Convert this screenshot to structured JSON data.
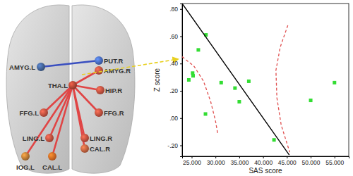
{
  "chart_data": {
    "type": "scatter",
    "x_label": "SAS score",
    "y_label": "Z score",
    "xlim": [
      23,
      58
    ],
    "ylim": [
      -0.28,
      0.84
    ],
    "xticks": [
      {
        "value": 25,
        "label": "25.000"
      },
      {
        "value": 30,
        "label": "30.000"
      },
      {
        "value": 35,
        "label": "35.000"
      },
      {
        "value": 40,
        "label": "40.000"
      },
      {
        "value": 45,
        "label": "45.000"
      },
      {
        "value": 50,
        "label": "50.000"
      },
      {
        "value": 55,
        "label": "55.000"
      }
    ],
    "yticks": [
      {
        "value": -0.2,
        "label": "-.20"
      },
      {
        "value": 0,
        "label": ".00"
      },
      {
        "value": 0.2,
        "label": ".20"
      },
      {
        "value": 0.4,
        "label": ".40"
      },
      {
        "value": 0.6,
        "label": ".60"
      },
      {
        "value": 0.8,
        "label": ".80"
      }
    ],
    "series": [
      {
        "type": "scatter",
        "color": "#33dd33",
        "marker": "square",
        "x": [
          24.4,
          25.2,
          25.3,
          26.4,
          28.0,
          27.9,
          31.2,
          34.1,
          35.0,
          37.0,
          42.3,
          50.0,
          55.0
        ],
        "values": [
          0.28,
          0.33,
          0.31,
          0.5,
          0.61,
          0.03,
          0.26,
          0.22,
          0.12,
          0.27,
          -0.16,
          0.13,
          0.26
        ]
      },
      {
        "type": "line",
        "color": "#000000",
        "line_style": "solid",
        "x": [
          23,
          45.5
        ],
        "values": [
          0.84,
          -0.27
        ]
      },
      {
        "type": "line",
        "color": "#e05050",
        "line_style": "dashed",
        "x": [
          23,
          25.5,
          27.5,
          29.0,
          30.0,
          30.5
        ],
        "values": [
          0.45,
          0.38,
          0.27,
          0.12,
          -0.02,
          -0.12
        ]
      },
      {
        "type": "line",
        "color": "#e05050",
        "line_style": "dashed",
        "x": [
          45.2,
          43.6,
          42.7,
          42.9,
          43.8,
          45.6
        ],
        "values": [
          0.68,
          0.52,
          0.35,
          0.15,
          -0.05,
          -0.25
        ]
      }
    ]
  },
  "diagram": {
    "nodes": [
      {
        "label": "AMYG.L",
        "color": "#3d5a8a"
      },
      {
        "label": "PUT.R",
        "color": "#4262b4"
      },
      {
        "label": "AMYG.R",
        "color": "#b84a3a"
      },
      {
        "label": "THA.L",
        "color": "#a04030"
      },
      {
        "label": "HIP.R",
        "color": "#b84a3a"
      },
      {
        "label": "FFG.L",
        "color": "#b84a3a"
      },
      {
        "label": "FFG.R",
        "color": "#b84a3a"
      },
      {
        "label": "LING.L",
        "color": "#b84a3a"
      },
      {
        "label": "LING.R",
        "color": "#b84a3a"
      },
      {
        "label": "IOG.L",
        "color": "#b07030"
      },
      {
        "label": "CAL.L",
        "color": "#d06020"
      },
      {
        "label": "CAL.R",
        "color": "#b85a3a"
      }
    ],
    "edges": [
      {
        "source": 0,
        "target": 1,
        "color": "#3a4fc0"
      },
      {
        "source": 3,
        "target": 2,
        "color": "#e04545"
      },
      {
        "source": 3,
        "target": 4,
        "color": "#e04545"
      },
      {
        "source": 3,
        "target": 6,
        "color": "#e04545"
      },
      {
        "source": 3,
        "target": 5,
        "color": "#e04545"
      },
      {
        "source": 3,
        "target": 7,
        "color": "#e04545"
      },
      {
        "source": 3,
        "target": 8,
        "color": "#e04545"
      },
      {
        "source": 3,
        "target": 9,
        "color": "#e04545"
      },
      {
        "source": 3,
        "target": 10,
        "color": "#e04545"
      },
      {
        "source": 3,
        "target": 11,
        "color": "#e04545"
      }
    ]
  }
}
